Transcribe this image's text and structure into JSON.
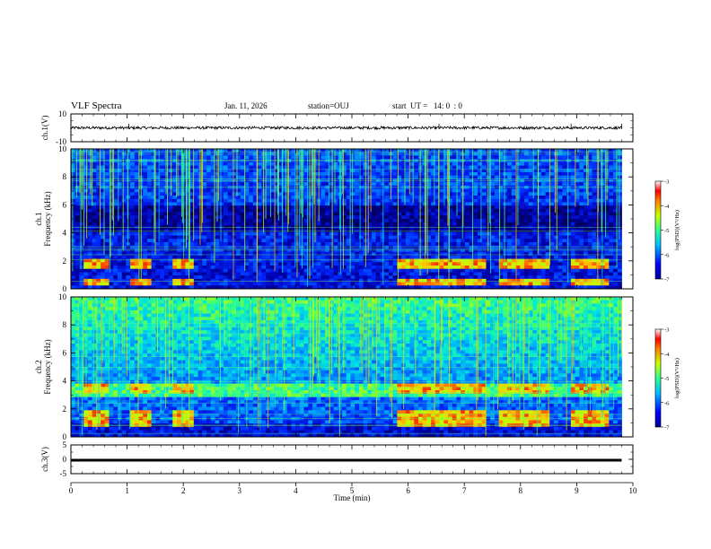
{
  "header": {
    "title": "VLF Spectra",
    "date": "Jan. 11, 2026",
    "station": "station=OUJ",
    "start": "start  UT =   14: 0  : 0"
  },
  "chart_data": [
    {
      "type": "line",
      "name": "ch1-voltage",
      "ylabel": "ch.1(V)",
      "ylim": [
        -10,
        10
      ],
      "yticks": [
        "10",
        "-10"
      ],
      "baseline_v": 0,
      "noise_amplitude_v": 1,
      "spikes_at_min": [
        1.03,
        6.55,
        8.9,
        9.8
      ]
    },
    {
      "type": "heatmap",
      "name": "ch1-spectrogram",
      "ylabel": [
        "ch.1",
        "Frequency  (kHz)"
      ],
      "ylim": [
        0,
        10
      ],
      "yticks": [
        "0",
        "2",
        "4",
        "6",
        "8",
        "10"
      ],
      "colorbar": {
        "label": "log(PSD)(V²/Hz)",
        "range": [
          -7,
          -3
        ],
        "ticks": [
          "-3",
          "-4",
          "-5",
          "-6",
          "-7"
        ]
      },
      "data_ends_min": 9.8,
      "activity_bands_khz": [
        0.5,
        1.8
      ],
      "activity_intervals_min": [
        [
          0.2,
          0.65
        ],
        [
          1.05,
          1.45
        ],
        [
          1.8,
          2.2
        ],
        [
          5.8,
          7.4
        ],
        [
          7.6,
          8.5
        ],
        [
          8.9,
          9.6
        ]
      ]
    },
    {
      "type": "heatmap",
      "name": "ch2-spectrogram",
      "ylabel": [
        "ch.2",
        "Frequency  (kHz)"
      ],
      "ylim": [
        0,
        10
      ],
      "yticks": [
        "0",
        "2",
        "4",
        "6",
        "8",
        "10"
      ],
      "colorbar": {
        "label": "log(PSD)(V²/Hz)",
        "range": [
          -7,
          -3
        ],
        "ticks": [
          "-3",
          "-4",
          "-5",
          "-6",
          "-7"
        ]
      },
      "data_ends_min": 9.8,
      "activity_bands_khz": [
        1.0,
        1.6,
        3.4
      ],
      "activity_intervals_min": [
        [
          0.2,
          0.65
        ],
        [
          1.05,
          1.45
        ],
        [
          1.8,
          2.2
        ],
        [
          5.8,
          7.4
        ],
        [
          7.6,
          8.5
        ],
        [
          8.9,
          9.6
        ]
      ]
    },
    {
      "type": "line",
      "name": "ch3-voltage",
      "ylabel": "ch.3(V)",
      "ylim": [
        -5,
        5
      ],
      "yticks": [
        "5",
        "0",
        "-5"
      ],
      "baseline_v": -0.3
    }
  ],
  "xaxis": {
    "label": "Time  (min)",
    "range": [
      0,
      10
    ],
    "ticks": [
      "0",
      "1",
      "2",
      "3",
      "4",
      "5",
      "6",
      "7",
      "8",
      "9",
      "10"
    ]
  }
}
